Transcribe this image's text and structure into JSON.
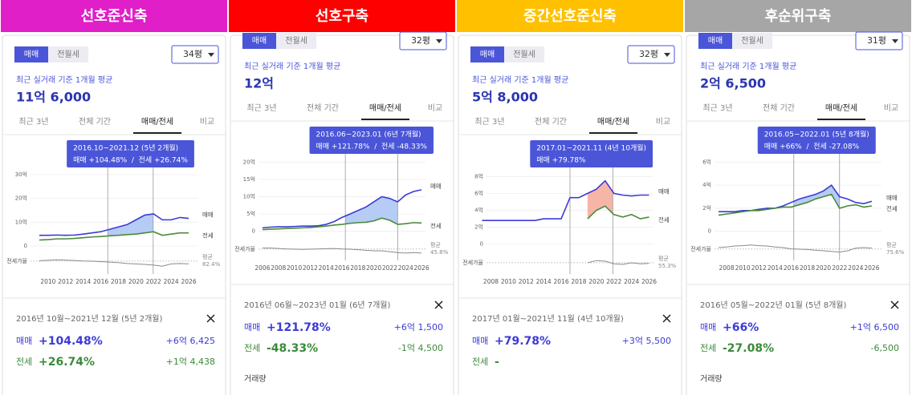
{
  "panels": [
    {
      "header": "선호준신축",
      "header_color": "#e01fc8",
      "tabs": [
        "매매",
        "전월세"
      ],
      "size": "34평",
      "avg_label": "최근 실거래 기준 1개월 평균",
      "avg_price": "11억 6,000",
      "periods": [
        "최근 3년",
        "전체 기간",
        "매매/전세",
        "비교"
      ],
      "tooltip": {
        "period": "2016.10~2021.12 (5년 2개월)",
        "change": "매매 +104.48%  /  전세 +26.74%"
      },
      "chart": {
        "type": "line",
        "x": [
          2009,
          2010,
          2011,
          2012,
          2013,
          2014,
          2015,
          2016,
          2017,
          2018,
          2019,
          2020,
          2021,
          2022,
          2023,
          2024,
          2025,
          2026
        ],
        "xlim": [
          2008,
          2027
        ],
        "xticks": [
          2010,
          2012,
          2014,
          2016,
          2018,
          2020,
          2022,
          2024,
          2026
        ],
        "ylim": [
          -1,
          31
        ],
        "yticks": [
          0,
          {
            "value": 10,
            "label": "10억"
          },
          {
            "value": 20,
            "label": "20억"
          },
          {
            "value": 30,
            "label": "30억"
          }
        ],
        "range": [
          2016.79,
          2021.96
        ],
        "fill_color": "#a9c3f2",
        "series": [
          {
            "name": "매매",
            "color": "#3b3bd6",
            "values": [
              4.5,
              4.5,
              4.6,
              4.5,
              4.6,
              5,
              5.5,
              6,
              7,
              8,
              9,
              11,
              13,
              13.5,
              11,
              11,
              12,
              11.6
            ]
          },
          {
            "name": "전세",
            "color": "#4b8a3b",
            "values": [
              2.5,
              2.7,
              3,
              3,
              3.2,
              3.5,
              3.8,
              4,
              4.3,
              4.5,
              4.8,
              5,
              5.5,
              6,
              4.5,
              5,
              5.5,
              5.5
            ]
          }
        ],
        "ratio": {
          "name": "전세가율",
          "color": "#8a8a8a",
          "lim": [
            40,
            110
          ],
          "avg": 82.4,
          "avg_label": "평균",
          "avg_value": "82.4%",
          "values": [
            84,
            86,
            88,
            87,
            85,
            83,
            82,
            80,
            78,
            76,
            72,
            70,
            68,
            65,
            60,
            70,
            72,
            70
          ]
        }
      },
      "summary": {
        "period": "2016년 10월~2021년 12월 (5년 2개월)",
        "rows": [
          {
            "label": "매매",
            "pct": "+104.48%",
            "amount": "+6억 6,425"
          },
          {
            "label": "전세",
            "pct": "+26.74%",
            "amount": "+1억 4,438"
          }
        ]
      }
    },
    {
      "header": "선호구축",
      "header_color": "#ff0000",
      "tabs": [
        "매매",
        "전월세"
      ],
      "size": "32평",
      "avg_label": "최근 실거래 기준 1개월 평균",
      "avg_price": "12억",
      "periods": [
        "최근 3년",
        "전체 기간",
        "매매/전세",
        "비교"
      ],
      "tooltip": {
        "period": "2016.06~2023.01 (6년 7개월)",
        "change": "매매 +121.78%  /  전세 -48.33%"
      },
      "chart": {
        "type": "line",
        "x": [
          2006,
          2007,
          2008,
          2009,
          2010,
          2011,
          2012,
          2013,
          2014,
          2015,
          2016,
          2017,
          2018,
          2019,
          2020,
          2021,
          2022,
          2023,
          2024,
          2025,
          2026
        ],
        "xlim": [
          2005.5,
          2026.5
        ],
        "xticks": [
          2006,
          2008,
          2010,
          2012,
          2014,
          2016,
          2018,
          2020,
          2022,
          2024,
          2026
        ],
        "ylim": [
          -1,
          21
        ],
        "yticks": [
          0,
          {
            "value": 5,
            "label": "5억"
          },
          {
            "value": 10,
            "label": "10억"
          },
          {
            "value": 15,
            "label": "15억"
          },
          {
            "value": 20,
            "label": "20억"
          }
        ],
        "range": [
          2016.42,
          2023.0
        ],
        "fill_color": "#a9c3f2",
        "series": [
          {
            "name": "매매",
            "color": "#3b3bd6",
            "values": [
              1,
              1.2,
              1.3,
              1.3,
              1.4,
              1.5,
              1.5,
              1.6,
              2,
              2.8,
              4,
              5,
              6,
              7,
              8.5,
              10,
              9.5,
              8.5,
              10.5,
              11.5,
              12
            ]
          },
          {
            "name": "전세",
            "color": "#4b8a3b",
            "values": [
              0.5,
              0.6,
              0.7,
              0.8,
              0.9,
              1,
              1.1,
              1.3,
              1.5,
              1.8,
              2,
              2.3,
              2.5,
              2.6,
              3,
              3.8,
              3.2,
              2,
              2.2,
              2.5,
              2.4
            ]
          }
        ],
        "ratio": {
          "name": "전세가율",
          "color": "#8a8a8a",
          "lim": [
            10,
            80
          ],
          "avg": 45.8,
          "avg_label": "평균",
          "avg_value": "45.8%",
          "values": [
            50,
            50,
            48,
            46,
            45,
            44,
            45,
            46,
            47,
            48,
            46,
            45,
            43,
            40,
            38,
            38,
            34,
            30,
            28,
            30,
            28
          ]
        }
      },
      "summary": {
        "period": "2016년 06월~2023년 01월 (6년 7개월)",
        "rows": [
          {
            "label": "매매",
            "pct": "+121.78%",
            "amount": "+6억 1,500"
          },
          {
            "label": "전세",
            "pct": "-48.33%",
            "amount": "-1억 4,500"
          }
        ]
      },
      "footer": "거래량"
    },
    {
      "header": "중간선호준신축",
      "header_color": "#ffc000",
      "tabs": [
        "매매",
        "전월세"
      ],
      "size": "32평",
      "avg_label": "최근 실거래 기준 1개월 평균",
      "avg_price": "5억 8,000",
      "periods": [
        "최근 3년",
        "전체 기간",
        "매매/전세",
        "비교"
      ],
      "tooltip": {
        "period": "2017.01~2021.11 (4년 10개월)",
        "change": "매매 +79.78%"
      },
      "chart": {
        "type": "line",
        "x": [
          2007,
          2008,
          2009,
          2010,
          2011,
          2012,
          2013,
          2014,
          2015,
          2016,
          2017,
          2018,
          2019,
          2020,
          2021,
          2022,
          2023,
          2024,
          2025,
          2026
        ],
        "xlim": [
          2007.5,
          2026.5
        ],
        "xticks": [
          2008,
          2010,
          2012,
          2014,
          2016,
          2018,
          2020,
          2022,
          2024,
          2026
        ],
        "ylim": [
          -0.5,
          8.5
        ],
        "yticks": [
          0,
          {
            "value": 2,
            "label": "2억"
          },
          {
            "value": 4,
            "label": "4억"
          },
          {
            "value": 6,
            "label": "6억"
          },
          {
            "value": 8,
            "label": "8억"
          }
        ],
        "range": [
          2017.0,
          2021.87
        ],
        "fill_color": "#f4a898",
        "series": [
          {
            "name": "매매",
            "color": "#3b3bd6",
            "values": [
              2.8,
              2.8,
              2.8,
              2.8,
              2.8,
              2.8,
              2.8,
              3,
              3,
              3,
              5.5,
              5.5,
              6,
              6.5,
              7.5,
              6,
              5.8,
              5.7,
              5.8,
              5.8
            ]
          },
          {
            "name": "전세",
            "color": "#4b8a3b",
            "values": [
              null,
              null,
              null,
              null,
              null,
              null,
              null,
              null,
              null,
              null,
              null,
              null,
              3,
              4,
              4.5,
              3.5,
              3.2,
              3.5,
              3,
              3.2
            ]
          }
        ],
        "ratio": {
          "name": "전세가율",
          "color": "#8a8a8a",
          "lim": [
            30,
            80
          ],
          "avg": 55.3,
          "avg_label": "평균",
          "avg_value": "55.3%",
          "values": [
            null,
            null,
            null,
            null,
            null,
            null,
            null,
            null,
            null,
            null,
            null,
            null,
            55,
            62,
            60,
            52,
            50,
            55,
            52,
            53
          ]
        }
      },
      "summary": {
        "period": "2017년 01월~2021년 11월 (4년 10개월)",
        "rows": [
          {
            "label": "매매",
            "pct": "+79.78%",
            "amount": "+3억 5,500"
          },
          {
            "label": "전세",
            "pct": "-"
          }
        ]
      }
    },
    {
      "header": "후순위구축",
      "header_color": "#a6a6a6",
      "tabs": [
        "매매",
        "전월세"
      ],
      "size": "31평",
      "avg_label": "최근 실거래 기준 1개월 평균",
      "avg_price": "2억 6,500",
      "periods": [
        "최근 3년",
        "전체 기간",
        "매매/전세",
        "비교"
      ],
      "tooltip": {
        "period": "2016.05~2022.01 (5년 8개월)",
        "change": "매매 +66%  /  전세 -27.08%"
      },
      "chart": {
        "type": "line",
        "x": [
          2007,
          2008,
          2009,
          2010,
          2011,
          2012,
          2013,
          2014,
          2015,
          2016,
          2017,
          2018,
          2019,
          2020,
          2021,
          2022,
          2023,
          2024,
          2025,
          2026
        ],
        "xlim": [
          2006.5,
          2027.2
        ],
        "xticks": [
          2008,
          2010,
          2012,
          2014,
          2016,
          2018,
          2020,
          2022,
          2024,
          2026
        ],
        "ylim": [
          -0.3,
          6.3
        ],
        "yticks": [
          0,
          {
            "value": 2,
            "label": "2억"
          },
          {
            "value": 4,
            "label": "4억"
          },
          {
            "value": 6,
            "label": "6억"
          }
        ],
        "range": [
          2016.33,
          2022.0
        ],
        "fill_color": "#a9c3f2",
        "series": [
          {
            "name": "매매",
            "color": "#3b3bd6",
            "values": [
              1.7,
              1.7,
              1.7,
              1.8,
              1.8,
              1.9,
              2,
              2,
              2.2,
              2.5,
              2.8,
              3,
              3.2,
              3.5,
              4,
              3,
              2.8,
              2.5,
              2.4,
              2.6
            ]
          },
          {
            "name": "전세",
            "color": "#4b8a3b",
            "values": [
              1.4,
              1.5,
              1.6,
              1.7,
              1.8,
              1.8,
              1.9,
              2,
              2.1,
              2.1,
              2.3,
              2.5,
              2.8,
              3,
              3.2,
              2,
              2.2,
              2.3,
              2.1,
              2.2
            ]
          }
        ],
        "ratio": {
          "name": "전세가율",
          "color": "#8a8a8a",
          "lim": [
            50,
            100
          ],
          "avg": 75.6,
          "avg_label": "평균",
          "avg_value": "75.6%",
          "values": [
            80,
            82,
            85,
            86,
            88,
            86,
            85,
            82,
            80,
            76,
            75,
            74,
            72,
            70,
            68,
            66,
            70,
            78,
            80,
            78
          ]
        }
      },
      "summary": {
        "period": "2016년 05월~2022년 01월 (5년 8개월)",
        "rows": [
          {
            "label": "매매",
            "pct": "+66%",
            "amount": "+1억 6,500"
          },
          {
            "label": "전세",
            "pct": "-27.08%",
            "amount": "-6,500"
          }
        ]
      },
      "footer": "거래량"
    }
  ]
}
